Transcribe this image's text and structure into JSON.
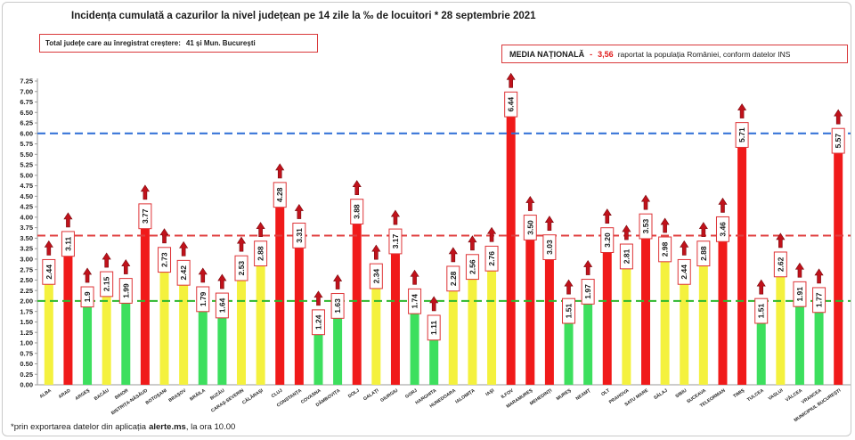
{
  "title": "Incidența cumulată a cazurilor la nivel județean pe 14 zile la ‰ de locuitori * 28 septembrie 2021",
  "increase_box": {
    "label": "Total județe care au înregistrat creștere:",
    "value": "41 și Mun. București"
  },
  "national_average_box": {
    "label": "MEDIA NAȚIONALĂ",
    "dash": "-",
    "value": "3,56",
    "note": "raportat la populația României, conform datelor INS"
  },
  "footer": {
    "prefix": "*prin exportarea datelor din aplicația",
    "app": "alerte.ms",
    "suffix": ", la ora 10.00"
  },
  "chart_data": {
    "type": "bar",
    "categories": [
      "ALBA",
      "ARAD",
      "ARGEȘ",
      "BACĂU",
      "BIHOR",
      "BISTRIȚA-NĂSĂUD",
      "BOTOȘANI",
      "BRAȘOV",
      "BRĂILA",
      "BUZĂU",
      "CARAȘ-SEVERIN",
      "CĂLĂRAȘI",
      "CLUJ",
      "CONSTANȚA",
      "COVASNA",
      "DÂMBOVIȚA",
      "DOLJ",
      "GALAȚI",
      "GIURGIU",
      "GORJ",
      "HARGHITA",
      "HUNEDOARA",
      "IALOMIȚA",
      "IAȘI",
      "ILFOV",
      "MARAMUREȘ",
      "MEHEDINȚI",
      "MUREȘ",
      "NEAMȚ",
      "OLT",
      "PRAHOVA",
      "SATU MARE",
      "SĂLAJ",
      "SIBIU",
      "SUCEAVA",
      "TELEORMAN",
      "TIMIȘ",
      "TULCEA",
      "VASLUI",
      "VÂLCEA",
      "VRANCEA",
      "MUNICIPIUL BUCUREȘTI"
    ],
    "values": [
      2.44,
      3.11,
      1.9,
      2.15,
      1.99,
      3.77,
      2.73,
      2.42,
      1.79,
      1.64,
      2.53,
      2.88,
      4.28,
      3.31,
      1.24,
      1.63,
      3.88,
      2.34,
      3.17,
      1.74,
      1.11,
      2.28,
      2.56,
      2.76,
      6.44,
      3.5,
      3.03,
      1.51,
      1.97,
      3.2,
      2.81,
      3.53,
      2.98,
      2.44,
      2.88,
      3.46,
      5.71,
      1.51,
      2.62,
      1.91,
      1.77,
      5.57
    ],
    "value_labels": [
      "2.44",
      "3.11",
      "1.9",
      "2.15",
      "1.99",
      "3.77",
      "2.73",
      "2.42",
      "1.79",
      "1.64",
      "2.53",
      "2.88",
      "4.28",
      "3.31",
      "1.24",
      "1.63",
      "3.88",
      "2.34",
      "3.17",
      "1.74",
      "1.11",
      "2.28",
      "2.56",
      "2.76",
      "6.44",
      "3.50",
      "3.03",
      "1.51",
      "1.97",
      "3.20",
      "2.81",
      "3.53",
      "2.98",
      "2.44",
      "2.88",
      "3.46",
      "5.71",
      "1.51",
      "2.62",
      "1.91",
      "1.77",
      "5.57"
    ],
    "bar_colors": [
      "yellow",
      "red",
      "green",
      "yellow",
      "green",
      "red",
      "yellow",
      "yellow",
      "green",
      "green",
      "yellow",
      "yellow",
      "red",
      "red",
      "green",
      "green",
      "red",
      "yellow",
      "red",
      "green",
      "green",
      "yellow",
      "yellow",
      "yellow",
      "red",
      "red",
      "red",
      "green",
      "green",
      "red",
      "yellow",
      "red",
      "yellow",
      "yellow",
      "yellow",
      "red",
      "red",
      "green",
      "yellow",
      "green",
      "green",
      "red"
    ],
    "trend": [
      "up",
      "up",
      "up",
      "up",
      "up",
      "up",
      "up",
      "up",
      "up",
      "up",
      "up",
      "up",
      "up",
      "up",
      "up",
      "up",
      "up",
      "up",
      "up",
      "up",
      "up",
      "up",
      "up",
      "up",
      "up",
      "up",
      "up",
      "up",
      "up",
      "up",
      "up",
      "up",
      "up",
      "up",
      "up",
      "up",
      "up",
      "up",
      "up",
      "up",
      "up",
      "up"
    ],
    "palette": {
      "green": "#3ddf5e",
      "yellow": "#f4f13e",
      "red": "#f01a1a"
    },
    "ylim": [
      0,
      7.25
    ],
    "y_ticks": [
      "0.00",
      "0.25",
      "0.50",
      "0.75",
      "1.00",
      "1.25",
      "1.50",
      "1.75",
      "2.00",
      "2.25",
      "2.50",
      "2.75",
      "3.00",
      "3.25",
      "3.50",
      "3.75",
      "4.00",
      "4.25",
      "4.50",
      "4.75",
      "5.00",
      "5.25",
      "5.50",
      "5.75",
      "6.00",
      "6.25",
      "6.50",
      "6.75",
      "7.00",
      "7.25"
    ],
    "reference_lines": [
      {
        "value": 6.0,
        "color": "#2e6fd6"
      },
      {
        "value": 3.56,
        "color": "#e04040"
      },
      {
        "value": 2.0,
        "color": "#2eb82e"
      }
    ],
    "grid": false,
    "legend": "none"
  }
}
